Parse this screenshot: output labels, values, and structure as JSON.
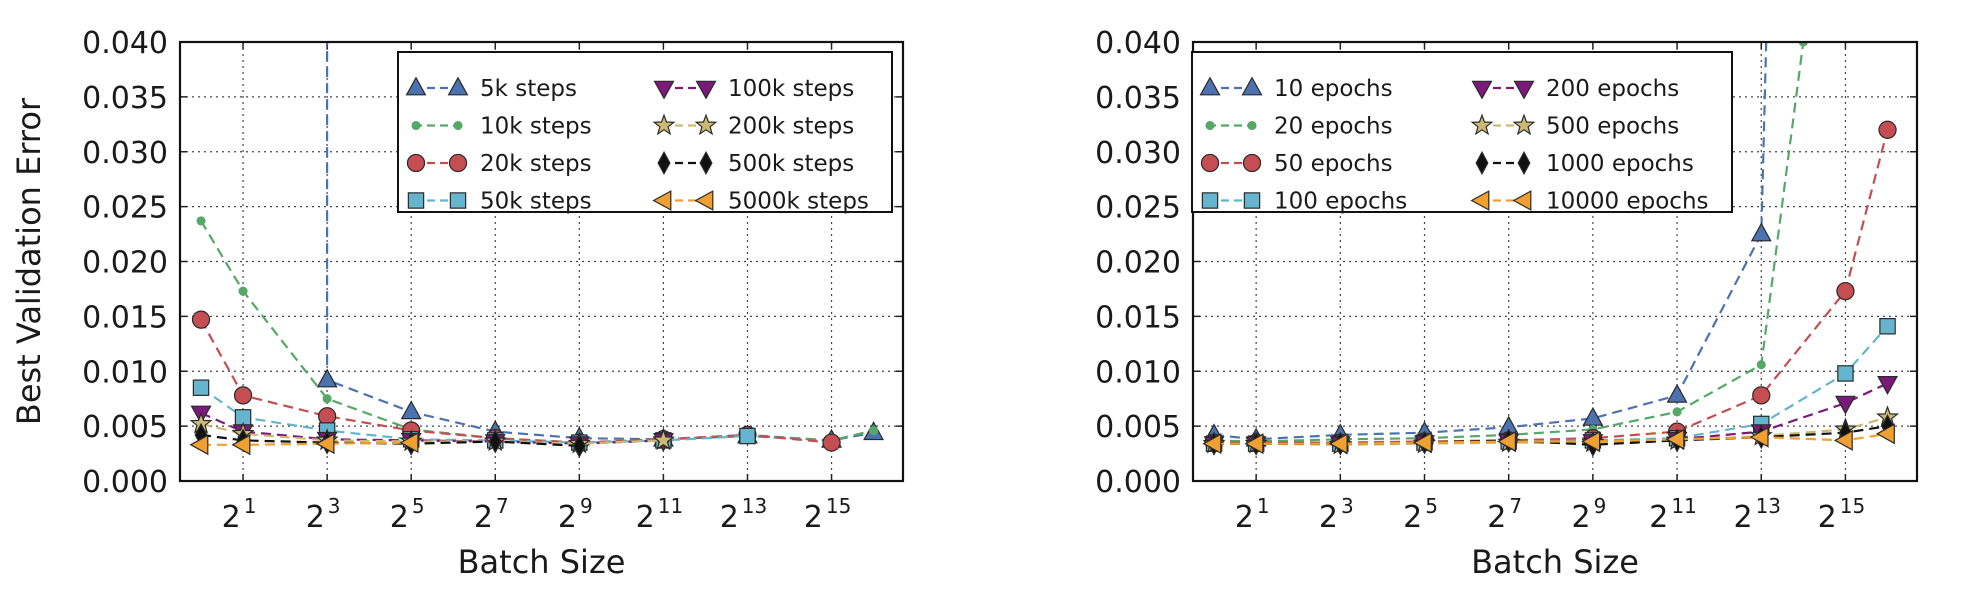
{
  "chart_data": [
    {
      "type": "line",
      "xlabel": "Batch Size",
      "ylabel": "Best Validation Error",
      "xscale": "log2",
      "xlim_exponent": [
        -0.5,
        16.7
      ],
      "ylim": [
        0.0,
        0.04
      ],
      "yticks": [
        "0.000",
        "0.005",
        "0.010",
        "0.015",
        "0.020",
        "0.025",
        "0.030",
        "0.035",
        "0.040"
      ],
      "xticks": [
        {
          "base": "2",
          "exp": "1"
        },
        {
          "base": "2",
          "exp": "3"
        },
        {
          "base": "2",
          "exp": "5"
        },
        {
          "base": "2",
          "exp": "7"
        },
        {
          "base": "2",
          "exp": "9"
        },
        {
          "base": "2",
          "exp": "11"
        },
        {
          "base": "2",
          "exp": "13"
        },
        {
          "base": "2",
          "exp": "15"
        }
      ],
      "grid": true,
      "legend": {
        "placement": "top-right",
        "columns": 2
      },
      "series": [
        {
          "name": "5k steps",
          "marker": "triangle-up",
          "color": "#4c72b0",
          "points": [
            [
              3,
              0.045
            ],
            [
              3,
              0.0092
            ],
            [
              5,
              0.0063
            ],
            [
              7,
              0.0045
            ],
            [
              9,
              0.0039
            ],
            [
              11,
              0.0038
            ],
            [
              13,
              0.0041
            ],
            [
              15,
              0.0037
            ],
            [
              16,
              0.0044
            ]
          ]
        },
        {
          "name": "10k steps",
          "marker": "dot",
          "color": "#55a868",
          "points": [
            [
              0,
              0.0237
            ],
            [
              1,
              0.0173
            ],
            [
              3,
              0.0075
            ],
            [
              5,
              0.0047
            ],
            [
              7,
              0.0039
            ],
            [
              9,
              0.0035
            ],
            [
              11,
              0.0038
            ],
            [
              13,
              0.0042
            ],
            [
              15,
              0.0037
            ],
            [
              16,
              0.0046
            ]
          ]
        },
        {
          "name": "20k steps",
          "marker": "circle",
          "color": "#c44e52",
          "points": [
            [
              0,
              0.0147
            ],
            [
              1,
              0.0078
            ],
            [
              3,
              0.0059
            ],
            [
              5,
              0.0046
            ],
            [
              7,
              0.0039
            ],
            [
              9,
              0.0035
            ],
            [
              11,
              0.0038
            ],
            [
              13,
              0.0042
            ],
            [
              15,
              0.0035
            ]
          ]
        },
        {
          "name": "50k steps",
          "marker": "square",
          "color": "#64b5cd",
          "points": [
            [
              0,
              0.0085
            ],
            [
              1,
              0.0058
            ],
            [
              3,
              0.0046
            ],
            [
              5,
              0.0038
            ],
            [
              7,
              0.0037
            ],
            [
              9,
              0.0035
            ],
            [
              11,
              0.0037
            ],
            [
              13,
              0.0041
            ]
          ]
        },
        {
          "name": "100k steps",
          "marker": "triangle-down",
          "color": "#7b1a7b",
          "points": [
            [
              0,
              0.0062
            ],
            [
              1,
              0.0045
            ],
            [
              3,
              0.0038
            ],
            [
              5,
              0.0037
            ],
            [
              7,
              0.0036
            ],
            [
              9,
              0.0034
            ],
            [
              11,
              0.0037
            ]
          ]
        },
        {
          "name": "200k steps",
          "marker": "star",
          "color": "#ccb974",
          "points": [
            [
              0,
              0.0052
            ],
            [
              1,
              0.0043
            ],
            [
              3,
              0.0037
            ],
            [
              5,
              0.0036
            ],
            [
              7,
              0.0036
            ],
            [
              9,
              0.0034
            ],
            [
              11,
              0.0037
            ]
          ]
        },
        {
          "name": "500k steps",
          "marker": "diamond",
          "color": "#111111",
          "points": [
            [
              0,
              0.0042
            ],
            [
              1,
              0.0037
            ],
            [
              3,
              0.0035
            ],
            [
              5,
              0.0034
            ],
            [
              7,
              0.0036
            ],
            [
              9,
              0.0032
            ]
          ]
        },
        {
          "name": "5000k steps",
          "marker": "triangle-left",
          "color": "#f0a030",
          "points": [
            [
              0,
              0.0033
            ],
            [
              1,
              0.0033
            ],
            [
              3,
              0.0034
            ],
            [
              5,
              0.0035
            ]
          ]
        }
      ]
    },
    {
      "type": "line",
      "xlabel": "Batch Size",
      "ylabel": "",
      "xscale": "log2",
      "xlim_exponent": [
        -0.5,
        16.7
      ],
      "ylim": [
        0.0,
        0.04
      ],
      "yticks": [
        "0.000",
        "0.005",
        "0.010",
        "0.015",
        "0.020",
        "0.025",
        "0.030",
        "0.035",
        "0.040"
      ],
      "xticks": [
        {
          "base": "2",
          "exp": "1"
        },
        {
          "base": "2",
          "exp": "3"
        },
        {
          "base": "2",
          "exp": "5"
        },
        {
          "base": "2",
          "exp": "7"
        },
        {
          "base": "2",
          "exp": "9"
        },
        {
          "base": "2",
          "exp": "11"
        },
        {
          "base": "2",
          "exp": "13"
        },
        {
          "base": "2",
          "exp": "15"
        }
      ],
      "grid": true,
      "legend": {
        "placement": "top-left",
        "columns": 2
      },
      "series": [
        {
          "name": "10 epochs",
          "marker": "triangle-up",
          "color": "#4c72b0",
          "points": [
            [
              0,
              0.0042
            ],
            [
              1,
              0.0038
            ],
            [
              3,
              0.0042
            ],
            [
              5,
              0.0044
            ],
            [
              7,
              0.0049
            ],
            [
              9,
              0.0057
            ],
            [
              11,
              0.0078
            ],
            [
              13,
              0.0225
            ],
            [
              13.15,
              0.045
            ]
          ]
        },
        {
          "name": "20 epochs",
          "marker": "dot",
          "color": "#55a868",
          "points": [
            [
              0,
              0.0037
            ],
            [
              1,
              0.0036
            ],
            [
              3,
              0.0038
            ],
            [
              5,
              0.0039
            ],
            [
              7,
              0.0042
            ],
            [
              9,
              0.0047
            ],
            [
              11,
              0.0063
            ],
            [
              13,
              0.0106
            ],
            [
              14,
              0.04
            ]
          ]
        },
        {
          "name": "50 epochs",
          "marker": "circle",
          "color": "#c44e52",
          "points": [
            [
              0,
              0.0035
            ],
            [
              1,
              0.0035
            ],
            [
              3,
              0.0035
            ],
            [
              5,
              0.0036
            ],
            [
              7,
              0.0037
            ],
            [
              9,
              0.0039
            ],
            [
              11,
              0.0045
            ],
            [
              13,
              0.0078
            ],
            [
              15,
              0.0173
            ],
            [
              16,
              0.032
            ]
          ]
        },
        {
          "name": "100 epochs",
          "marker": "square",
          "color": "#64b5cd",
          "points": [
            [
              0,
              0.0034
            ],
            [
              1,
              0.0034
            ],
            [
              3,
              0.0034
            ],
            [
              5,
              0.0035
            ],
            [
              7,
              0.0036
            ],
            [
              9,
              0.0037
            ],
            [
              11,
              0.0039
            ],
            [
              13,
              0.0052
            ],
            [
              15,
              0.0098
            ],
            [
              16,
              0.0141
            ]
          ]
        },
        {
          "name": "200 epochs",
          "marker": "triangle-down",
          "color": "#7b1a7b",
          "points": [
            [
              0,
              0.0034
            ],
            [
              1,
              0.0034
            ],
            [
              3,
              0.0034
            ],
            [
              5,
              0.0035
            ],
            [
              7,
              0.0036
            ],
            [
              9,
              0.0036
            ],
            [
              11,
              0.0038
            ],
            [
              13,
              0.0045
            ],
            [
              15,
              0.0071
            ],
            [
              16,
              0.0089
            ]
          ]
        },
        {
          "name": "500 epochs",
          "marker": "star",
          "color": "#ccb974",
          "points": [
            [
              0,
              0.0034
            ],
            [
              1,
              0.0034
            ],
            [
              3,
              0.0033
            ],
            [
              5,
              0.0034
            ],
            [
              7,
              0.0035
            ],
            [
              9,
              0.0035
            ],
            [
              11,
              0.0037
            ],
            [
              13,
              0.0041
            ],
            [
              15,
              0.0047
            ],
            [
              16,
              0.0058
            ]
          ]
        },
        {
          "name": "1000 epochs",
          "marker": "diamond",
          "color": "#111111",
          "points": [
            [
              0,
              0.0034
            ],
            [
              1,
              0.0034
            ],
            [
              3,
              0.0034
            ],
            [
              5,
              0.0035
            ],
            [
              7,
              0.0037
            ],
            [
              9,
              0.0033
            ],
            [
              11,
              0.0037
            ],
            [
              13,
              0.004
            ],
            [
              15,
              0.0044
            ],
            [
              16,
              0.005
            ]
          ]
        },
        {
          "name": "10000 epochs",
          "marker": "triangle-left",
          "color": "#f0a030",
          "points": [
            [
              0,
              0.0034
            ],
            [
              1,
              0.0034
            ],
            [
              3,
              0.0034
            ],
            [
              5,
              0.0035
            ],
            [
              7,
              0.0036
            ],
            [
              9,
              0.0036
            ],
            [
              11,
              0.0038
            ],
            [
              13,
              0.004
            ],
            [
              15,
              0.0037
            ],
            [
              16,
              0.0043
            ]
          ]
        }
      ]
    }
  ]
}
